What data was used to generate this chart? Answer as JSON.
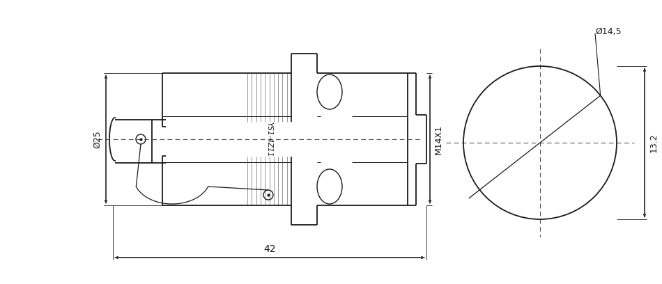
{
  "bg_color": "#ffffff",
  "line_color": "#1a1a1a",
  "dim_color": "#1a1a1a",
  "dash_color": "#555555",
  "hatch_color": "#444444",
  "side_view": {
    "label_ys1": "YS1-4Z11",
    "dim_phi25": "Ø25",
    "dim_42": "42",
    "dim_m14x1": "M14X1"
  },
  "front_view": {
    "dim_phi14_5": "Ø14,5",
    "dim_13_2": "13.2"
  }
}
